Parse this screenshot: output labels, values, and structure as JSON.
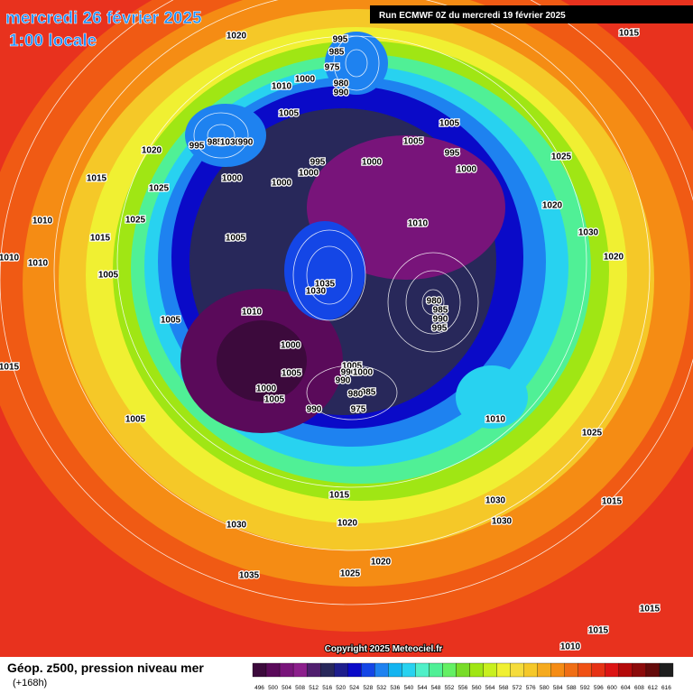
{
  "header": {
    "date": "mercredi 26 février 2025",
    "time": "1:00 locale",
    "run": "Run ECMWF 0Z du mercredi 19 février 2025"
  },
  "copyright": "Copyright 2025 Meteociel.fr",
  "footer": {
    "title": "Géop. z500, pression niveau mer",
    "lead": "(+168h)"
  },
  "scale": {
    "labels": [
      496,
      500,
      504,
      508,
      512,
      516,
      520,
      524,
      528,
      532,
      536,
      540,
      544,
      548,
      552,
      556,
      560,
      564,
      568,
      572,
      576,
      580,
      584,
      588,
      592,
      596,
      600,
      604,
      608,
      612,
      616
    ],
    "colors": [
      "#3c0a3c",
      "#5a0a5a",
      "#78147a",
      "#8c1e8c",
      "#501e6e",
      "#28285a",
      "#1e1e8c",
      "#0a0ac8",
      "#1446e6",
      "#1e82f0",
      "#14b4f0",
      "#28d2f0",
      "#50f0c8",
      "#50f096",
      "#64f064",
      "#78dc28",
      "#a0e614",
      "#c8f01e",
      "#f0f032",
      "#f5dc3c",
      "#f5c828",
      "#f5aa1e",
      "#f58c14",
      "#f06e14",
      "#f05014",
      "#e63214",
      "#dc1414",
      "#b40a0a",
      "#8c0a0a",
      "#640a0a",
      "#1e1e1e"
    ]
  },
  "isobars": [
    1020,
    995,
    985,
    975,
    980,
    990,
    1000,
    1010,
    1005,
    995,
    985,
    1030,
    990,
    1020,
    1015,
    1025,
    1000,
    1000,
    995,
    1000,
    1000,
    1005,
    1005,
    995,
    1000,
    1025,
    1020,
    1010,
    1005,
    1010,
    1015,
    1025,
    1010,
    1010,
    1005,
    1035,
    1030,
    1010,
    1005,
    980,
    985,
    990,
    995,
    1000,
    1005,
    1005,
    990,
    1000,
    990,
    985,
    980,
    975,
    990,
    1000,
    1005,
    1005,
    1015,
    1030,
    1020,
    1010,
    1025,
    1015,
    1020,
    1030,
    1030,
    1030,
    1035,
    1025,
    1020,
    1015,
    1015,
    1015,
    1010,
    1015
  ]
}
